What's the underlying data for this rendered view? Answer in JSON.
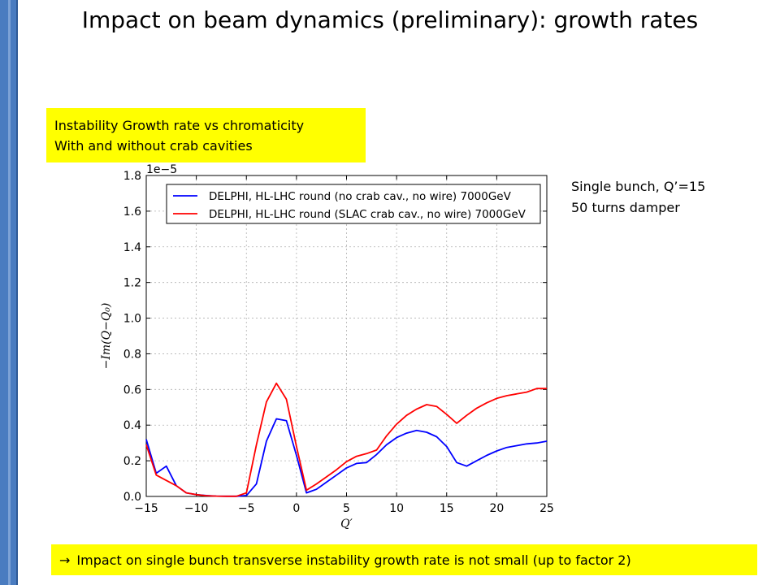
{
  "slide": {
    "title": "Impact on beam dynamics (preliminary): growth rates",
    "callout_lines": [
      "Instability Growth rate vs chromaticity",
      "With and without crab cavities"
    ],
    "side_note_lines": [
      "Single bunch, Q’=15",
      "50 turns damper"
    ],
    "bottom_note_arrow": "→",
    "bottom_note": "Impact on single bunch transverse instability growth rate is not small (up to factor 2)",
    "accent_color": "#ffff00",
    "sidebar_color": "#4a7cc0"
  },
  "chart_data": {
    "type": "line",
    "title": "",
    "xlabel": "Q′",
    "ylabel": "−Im(Q−Q₀)",
    "y_scale_label": "1e−5",
    "xlim": [
      -15,
      25
    ],
    "ylim": [
      0,
      1.8
    ],
    "xticks": [
      -15,
      -10,
      -5,
      0,
      5,
      10,
      15,
      20,
      25
    ],
    "xtick_labels": [
      "−15",
      "−10",
      "−5",
      "0",
      "5",
      "10",
      "15",
      "20",
      "25"
    ],
    "yticks": [
      0.0,
      0.2,
      0.4,
      0.6,
      0.8,
      1.0,
      1.2,
      1.4,
      1.6,
      1.8
    ],
    "ytick_labels": [
      "0.0",
      "0.2",
      "0.4",
      "0.6",
      "0.8",
      "1.0",
      "1.2",
      "1.4",
      "1.6",
      "1.8"
    ],
    "grid": true,
    "legend_position": "top",
    "series": [
      {
        "name": "DELPHI, HL-LHC round (no crab cav., no wire) 7000GeV",
        "color": "#0000ff",
        "x": [
          -15,
          -14,
          -13,
          -12,
          -11,
          -10,
          -9,
          -8,
          -7,
          -6,
          -5,
          -4,
          -3,
          -2,
          -1,
          0,
          1,
          2,
          3,
          4,
          5,
          6,
          7,
          8,
          9,
          10,
          11,
          12,
          13,
          14,
          15,
          16,
          17,
          18,
          19,
          20,
          21,
          22,
          23,
          24,
          25
        ],
        "y": [
          0.32,
          0.13,
          0.17,
          0.06,
          0.02,
          0.01,
          0.005,
          0.002,
          0.001,
          0.001,
          0.005,
          0.07,
          0.31,
          0.435,
          0.425,
          0.23,
          0.02,
          0.04,
          0.08,
          0.12,
          0.16,
          0.185,
          0.19,
          0.235,
          0.29,
          0.33,
          0.355,
          0.37,
          0.36,
          0.335,
          0.28,
          0.19,
          0.17,
          0.2,
          0.23,
          0.255,
          0.275,
          0.285,
          0.295,
          0.3,
          0.31
        ]
      },
      {
        "name": "DELPHI, HL-LHC round (SLAC crab cav., no wire) 7000GeV",
        "color": "#ff0000",
        "x": [
          -15,
          -14,
          -13,
          -12,
          -11,
          -10,
          -9,
          -8,
          -7,
          -6,
          -5,
          -4,
          -3,
          -2,
          -1,
          0,
          1,
          2,
          3,
          4,
          5,
          6,
          7,
          8,
          9,
          10,
          11,
          12,
          13,
          14,
          15,
          16,
          17,
          18,
          19,
          20,
          21,
          22,
          23,
          24,
          25
        ],
        "y": [
          0.29,
          0.12,
          0.09,
          0.06,
          0.02,
          0.01,
          0.004,
          0.002,
          0.001,
          0.001,
          0.02,
          0.29,
          0.53,
          0.635,
          0.545,
          0.28,
          0.035,
          0.07,
          0.11,
          0.15,
          0.195,
          0.225,
          0.24,
          0.26,
          0.34,
          0.405,
          0.455,
          0.49,
          0.515,
          0.505,
          0.46,
          0.41,
          0.455,
          0.495,
          0.525,
          0.55,
          0.565,
          0.575,
          0.585,
          0.605,
          0.605
        ]
      }
    ]
  }
}
